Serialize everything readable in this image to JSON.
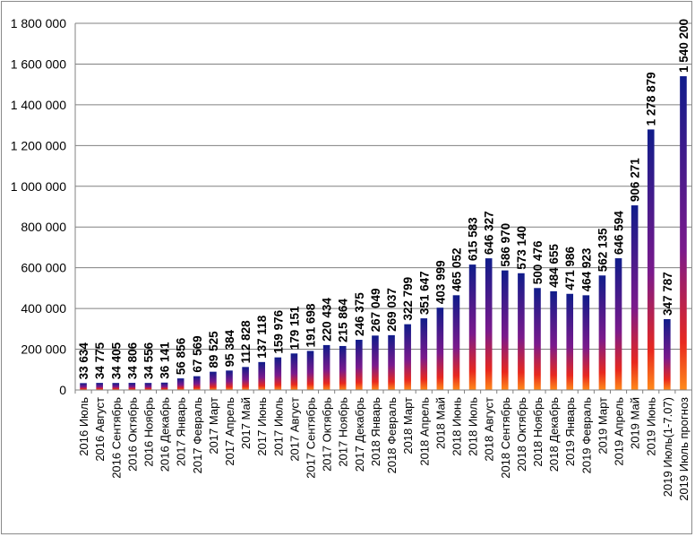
{
  "chart_data": {
    "type": "bar",
    "categories": [
      "2016 Июль",
      "2016 Август",
      "2016 Сентябрь",
      "2016 Октябрь",
      "2016 Ноябрь",
      "2016 Декабрь",
      "2017 Январь",
      "2017 Февраль",
      "2017 Март",
      "2017 Апрель",
      "2017 Май",
      "2017 Июнь",
      "2017 Июль",
      "2017 Август",
      "2017 Сентябрь",
      "2017 Октябрь",
      "2017 Ноябрь",
      "2017 Декабрь",
      "2018 Январь",
      "2018 Февраль",
      "2018 Март",
      "2018 Апрель",
      "2018 Май",
      "2018 Июнь",
      "2018 Июль",
      "2018 Август",
      "2018 Сентябрь",
      "2018 Октябрь",
      "2018 Ноябрь",
      "2018 Декабрь",
      "2019 Январь",
      "2019 Февраль",
      "2019 Март",
      "2019 Апрель",
      "2019 Май",
      "2019 Июнь",
      "2019 Июль(1-7.07)",
      "2019 Июль прогноз"
    ],
    "values": [
      33634,
      34775,
      34405,
      34806,
      34556,
      36141,
      56856,
      67569,
      89525,
      95384,
      112828,
      137118,
      159976,
      179151,
      191698,
      220434,
      215864,
      246375,
      267049,
      269037,
      322799,
      351647,
      403999,
      465052,
      615583,
      646327,
      586970,
      573140,
      500476,
      484655,
      471986,
      464923,
      562135,
      646594,
      906271,
      1278879,
      347787,
      1540200
    ],
    "value_labels": [
      "33 634",
      "34 775",
      "34 405",
      "34 806",
      "34 556",
      "36 141",
      "56 856",
      "67 569",
      "89 525",
      "95 384",
      "112 828",
      "137 118",
      "159 976",
      "179 151",
      "191 698",
      "220 434",
      "215 864",
      "246 375",
      "267 049",
      "269 037",
      "322 799",
      "351 647",
      "403 999",
      "465 052",
      "615 583",
      "646 327",
      "586 970",
      "573 140",
      "500 476",
      "484 655",
      "471 986",
      "464 923",
      "562 135",
      "646 594",
      "906 271",
      "1 278 879",
      "347 787",
      "1 540 200"
    ],
    "y_ticks": [
      0,
      200000,
      400000,
      600000,
      800000,
      1000000,
      1200000,
      1400000,
      1600000,
      1800000
    ],
    "y_tick_labels": [
      "0",
      "200 000",
      "400 000",
      "600 000",
      "800 000",
      "1 000 000",
      "1 200 000",
      "1 400 000",
      "1 600 000",
      "1 800 000"
    ],
    "ylim": [
      0,
      1800000
    ],
    "grid": true,
    "legend": "none",
    "colors": {
      "bar_top": "#101c8a",
      "bar_mid": "#7a1a8c",
      "bar_low": "#e8281e",
      "bar_base": "#ff8a1a",
      "gridline": "#808080",
      "axis": "#808080"
    }
  }
}
